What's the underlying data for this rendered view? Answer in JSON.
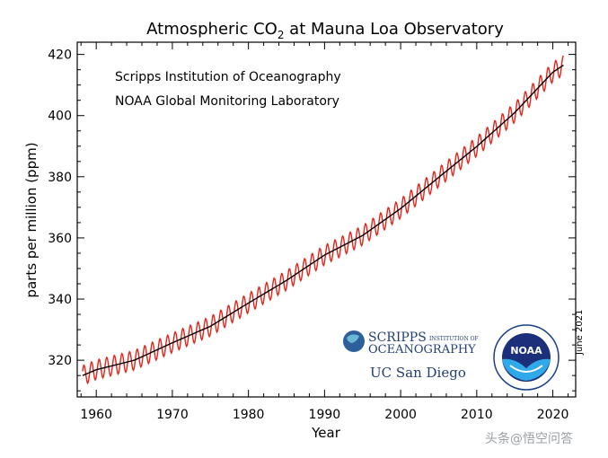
{
  "chart_data": {
    "type": "line",
    "title": "Atmospheric CO",
    "title_subscript": "2",
    "title_suffix": " at Mauna Loa Observatory",
    "annotations": [
      "Scripps Institution of Oceanography",
      "NOAA Global Monitoring Laboratory"
    ],
    "xlabel": "Year",
    "ylabel": "parts per million (ppm)",
    "xlim": [
      1957.5,
      2023
    ],
    "ylim": [
      308,
      424
    ],
    "xticks": [
      1960,
      1970,
      1980,
      1990,
      2000,
      2010,
      2020
    ],
    "yticks": [
      320,
      340,
      360,
      380,
      400,
      420
    ],
    "grid": false,
    "series": [
      {
        "kind": "monthly-mean",
        "color": "#e3241b",
        "seasonal_amplitude_ppm": 3.2,
        "x": [
          1958.2,
          2021.4
        ]
      },
      {
        "kind": "deseasonalized-trend",
        "color": "#000000",
        "x": [
          1958.2,
          1960,
          1965,
          1970,
          1975,
          1980,
          1985,
          1990,
          1995,
          2000,
          2005,
          2010,
          2015,
          2020,
          2021.4
        ],
        "y": [
          315.0,
          316.9,
          320.0,
          325.7,
          331.1,
          338.7,
          346.1,
          354.4,
          360.8,
          369.6,
          379.8,
          389.9,
          401.0,
          414.2,
          416.5
        ]
      }
    ]
  },
  "logos": {
    "scripps_line1": "SCRIPPS",
    "scripps_small": "INSTITUTION OF",
    "scripps_line2": "OCEANOGRAPHY",
    "ucsd": "UC San Diego",
    "noaa": "NOAA"
  },
  "date_note": "June 2021",
  "watermark": "头条@悟空问答"
}
